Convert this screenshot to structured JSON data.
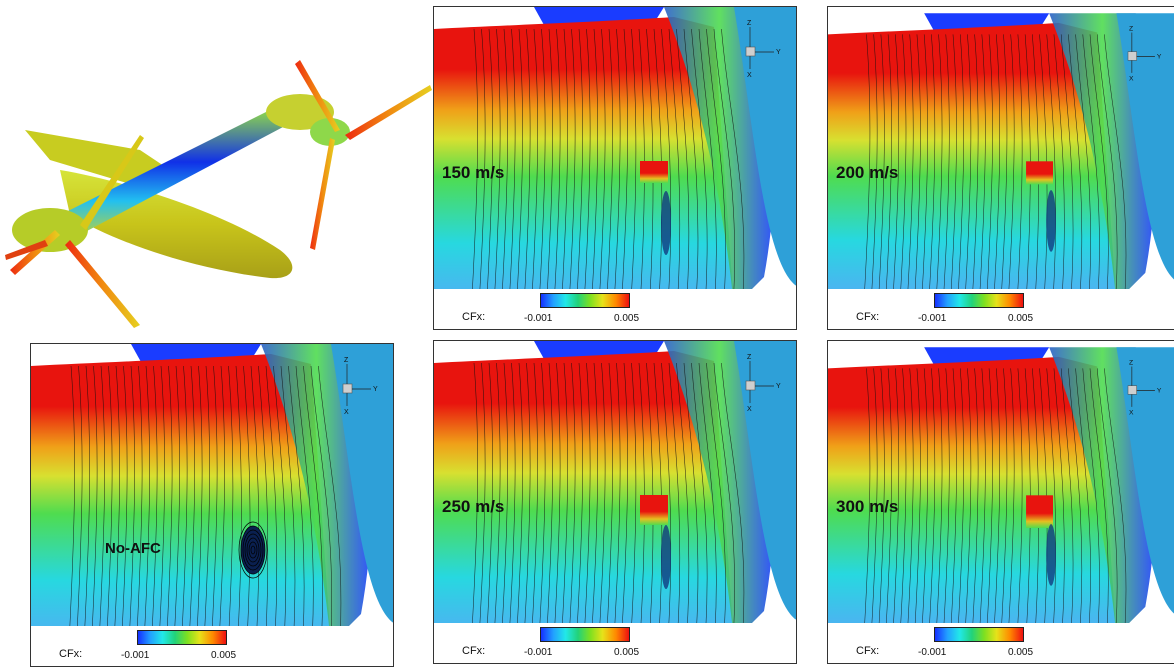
{
  "panels": [
    {
      "id": "p150",
      "speed": "150 m/s"
    },
    {
      "id": "p200",
      "speed": "200 m/s"
    },
    {
      "id": "pnoafc",
      "speed": "No-AFC"
    },
    {
      "id": "p250",
      "speed": "250 m/s"
    },
    {
      "id": "p300",
      "speed": "300 m/s"
    }
  ],
  "colorbar": {
    "label": "CFx:",
    "min": "-0.001",
    "max": "0.005"
  },
  "axes": {
    "z": "Z",
    "y": "Y",
    "x": "X"
  },
  "colors": {
    "red": "#e8140e",
    "green": "#4fdc4f",
    "cyan": "#27d8e0",
    "blue": "#1a3cff"
  }
}
